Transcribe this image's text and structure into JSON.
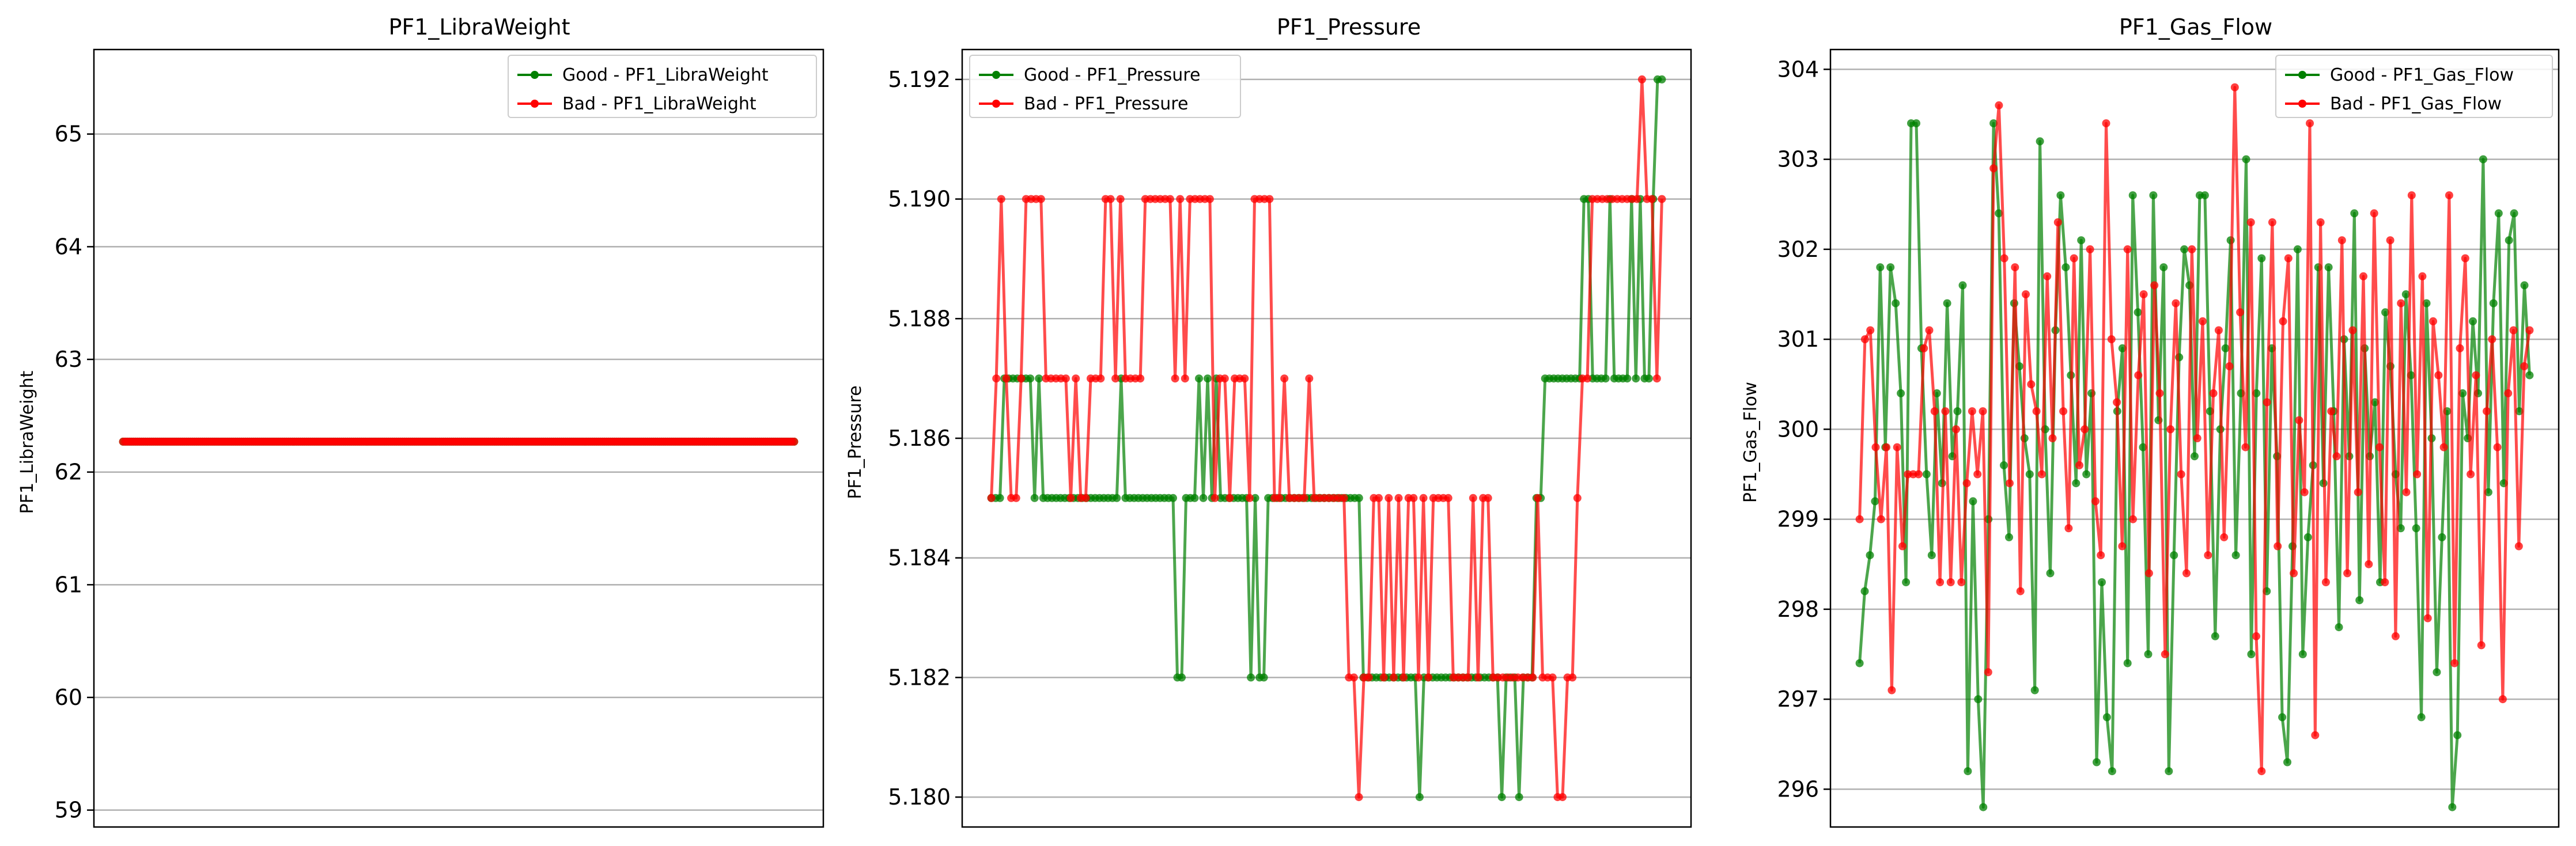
{
  "chart_data": [
    {
      "type": "line",
      "title": "PF1_LibraWeight",
      "xlabel": "",
      "ylabel": "PF1_LibraWeight",
      "ylim": [
        58.85,
        65.75
      ],
      "yticks": [
        59,
        60,
        61,
        62,
        63,
        64,
        65
      ],
      "ytick_labels": [
        "59",
        "60",
        "61",
        "62",
        "63",
        "64",
        "65"
      ],
      "grid": "horizontal",
      "legend": "top-right",
      "series": [
        {
          "name": "Good - PF1_LibraWeight",
          "color": "#008000",
          "marker": "dot",
          "values": [
            62.27
          ]
        },
        {
          "name": "Bad - PF1_LibraWeight",
          "color": "#ff0000",
          "marker": "dot",
          "values": [
            62.27
          ]
        }
      ]
    },
    {
      "type": "line",
      "title": "PF1_Pressure",
      "xlabel": "",
      "ylabel": "PF1_Pressure",
      "ylim": [
        5.1795,
        5.1925
      ],
      "yticks": [
        5.18,
        5.182,
        5.184,
        5.186,
        5.188,
        5.19,
        5.192
      ],
      "ytick_labels": [
        "5.180",
        "5.182",
        "5.184",
        "5.186",
        "5.188",
        "5.190",
        "5.192"
      ],
      "grid": "horizontal",
      "legend": "top-left",
      "series": [
        {
          "name": "Good - PF1_Pressure",
          "color": "#008000",
          "marker": "dot",
          "values": [
            5.185,
            5.185,
            5.185,
            5.187,
            5.187,
            5.187,
            5.187,
            5.187,
            5.187,
            5.187,
            5.185,
            5.187,
            5.185,
            5.185,
            5.185,
            5.185,
            5.185,
            5.185,
            5.185,
            5.185,
            5.185,
            5.185,
            5.185,
            5.185,
            5.185,
            5.185,
            5.185,
            5.185,
            5.185,
            5.185,
            5.187,
            5.185,
            5.185,
            5.185,
            5.185,
            5.185,
            5.185,
            5.185,
            5.185,
            5.185,
            5.185,
            5.185,
            5.185,
            5.182,
            5.182,
            5.185,
            5.185,
            5.185,
            5.187,
            5.185,
            5.187,
            5.185,
            5.187,
            5.185,
            5.185,
            5.185,
            5.185,
            5.185,
            5.185,
            5.185,
            5.182,
            5.185,
            5.182,
            5.182,
            5.185,
            5.185,
            5.185,
            5.185,
            5.185,
            5.185,
            5.185,
            5.185,
            5.185,
            5.185,
            5.185,
            5.185,
            5.185,
            5.185,
            5.185,
            5.185,
            5.185,
            5.185,
            5.185,
            5.185,
            5.185,
            5.185,
            5.182,
            5.182,
            5.182,
            5.182,
            5.182,
            5.182,
            5.182,
            5.182,
            5.182,
            5.182,
            5.182,
            5.182,
            5.182,
            5.18,
            5.182,
            5.182,
            5.182,
            5.182,
            5.182,
            5.182,
            5.182,
            5.182,
            5.182,
            5.182,
            5.182,
            5.182,
            5.182,
            5.182,
            5.182,
            5.182,
            5.182,
            5.182,
            5.18,
            5.182,
            5.182,
            5.182,
            5.18,
            5.182,
            5.182,
            5.182,
            5.185,
            5.185,
            5.187,
            5.187,
            5.187,
            5.187,
            5.187,
            5.187,
            5.187,
            5.187,
            5.187,
            5.19,
            5.19,
            5.187,
            5.187,
            5.187,
            5.187,
            5.19,
            5.187,
            5.187,
            5.187,
            5.187,
            5.19,
            5.187,
            5.19,
            5.187,
            5.187,
            5.19,
            5.192,
            5.192
          ]
        },
        {
          "name": "Bad - PF1_Pressure",
          "color": "#ff0000",
          "marker": "dot",
          "values": [
            5.185,
            5.187,
            5.19,
            5.187,
            5.185,
            5.185,
            5.187,
            5.19,
            5.19,
            5.19,
            5.19,
            5.187,
            5.187,
            5.187,
            5.187,
            5.187,
            5.185,
            5.187,
            5.185,
            5.185,
            5.187,
            5.187,
            5.187,
            5.19,
            5.19,
            5.187,
            5.19,
            5.187,
            5.187,
            5.187,
            5.187,
            5.19,
            5.19,
            5.19,
            5.19,
            5.19,
            5.19,
            5.187,
            5.19,
            5.187,
            5.19,
            5.19,
            5.19,
            5.19,
            5.19,
            5.185,
            5.187,
            5.187,
            5.185,
            5.187,
            5.187,
            5.187,
            5.185,
            5.19,
            5.19,
            5.19,
            5.19,
            5.185,
            5.185,
            5.187,
            5.185,
            5.185,
            5.185,
            5.185,
            5.187,
            5.185,
            5.185,
            5.185,
            5.185,
            5.185,
            5.185,
            5.185,
            5.182,
            5.182,
            5.18,
            5.182,
            5.182,
            5.185,
            5.185,
            5.182,
            5.185,
            5.182,
            5.185,
            5.182,
            5.185,
            5.185,
            5.182,
            5.185,
            5.182,
            5.185,
            5.185,
            5.185,
            5.185,
            5.182,
            5.182,
            5.182,
            5.182,
            5.185,
            5.182,
            5.185,
            5.185,
            5.182,
            5.182,
            5.182,
            5.182,
            5.182,
            5.182,
            5.182,
            5.182,
            5.182,
            5.185,
            5.182,
            5.182,
            5.182,
            5.18,
            5.18,
            5.182,
            5.182,
            5.185,
            5.187,
            5.187,
            5.19,
            5.19,
            5.19,
            5.19,
            5.19,
            5.19,
            5.19,
            5.19,
            5.19,
            5.19,
            5.192,
            5.19,
            5.19,
            5.187,
            5.19
          ]
        }
      ]
    },
    {
      "type": "line",
      "title": "PF1_Gas_Flow",
      "xlabel": "",
      "ylabel": "PF1_Gas_Flow",
      "ylim": [
        295.58,
        304.22
      ],
      "yticks": [
        296,
        297,
        298,
        299,
        300,
        301,
        302,
        303,
        304
      ],
      "ytick_labels": [
        "296",
        "297",
        "298",
        "299",
        "300",
        "301",
        "302",
        "303",
        "304"
      ],
      "grid": "horizontal",
      "legend": "top-right",
      "series": [
        {
          "name": "Good - PF1_Gas_Flow",
          "color": "#008000",
          "marker": "dot",
          "values": [
            297.4,
            298.2,
            298.6,
            299.2,
            301.8,
            299.8,
            301.8,
            301.4,
            300.4,
            298.3,
            303.4,
            303.4,
            300.9,
            299.5,
            298.6,
            300.4,
            299.4,
            301.4,
            299.7,
            300.2,
            301.6,
            296.2,
            299.2,
            297.0,
            295.8,
            299.0,
            303.4,
            302.4,
            299.6,
            298.8,
            301.4,
            300.7,
            299.9,
            299.5,
            297.1,
            303.2,
            300.0,
            298.4,
            301.1,
            302.6,
            301.8,
            300.6,
            299.4,
            302.1,
            299.5,
            300.4,
            296.3,
            298.3,
            296.8,
            296.2,
            300.2,
            300.9,
            297.4,
            302.6,
            301.3,
            299.8,
            297.5,
            302.6,
            300.1,
            301.8,
            296.2,
            298.6,
            300.8,
            302.0,
            301.6,
            299.7,
            302.6,
            302.6,
            300.2,
            297.7,
            300.0,
            300.9,
            302.1,
            298.6,
            300.4,
            303.0,
            297.5,
            300.4,
            301.9,
            298.2,
            300.9,
            299.7,
            296.8,
            296.3,
            298.7,
            302.0,
            297.5,
            298.8,
            299.6,
            301.8,
            299.4,
            301.8,
            300.2,
            297.8,
            301.0,
            299.7,
            302.4,
            298.1,
            300.9,
            299.7,
            300.3,
            298.3,
            301.3,
            300.7,
            299.5,
            298.9,
            301.5,
            300.6,
            298.9,
            296.8,
            301.4,
            299.9,
            297.3,
            298.8,
            300.2,
            295.8,
            296.6,
            300.4,
            299.9,
            301.2,
            300.4,
            303.0,
            299.3,
            301.4,
            302.4,
            299.4,
            302.1,
            302.4,
            300.2,
            301.6,
            300.6
          ]
        },
        {
          "name": "Bad - PF1_Gas_Flow",
          "color": "#ff0000",
          "marker": "dot",
          "values": [
            299.0,
            301.0,
            301.1,
            299.8,
            299.0,
            299.8,
            297.1,
            299.8,
            298.7,
            299.5,
            299.5,
            299.5,
            300.9,
            301.1,
            300.2,
            298.3,
            300.2,
            298.3,
            300.0,
            298.3,
            299.4,
            300.2,
            299.5,
            300.2,
            297.3,
            302.9,
            303.6,
            301.9,
            299.4,
            301.8,
            298.2,
            301.5,
            300.5,
            300.2,
            299.5,
            301.7,
            299.9,
            302.3,
            300.2,
            298.9,
            301.9,
            299.6,
            300.0,
            302.0,
            299.2,
            298.6,
            303.4,
            301.0,
            300.3,
            298.7,
            302.0,
            299.0,
            300.6,
            301.5,
            298.4,
            301.6,
            300.4,
            297.5,
            300.0,
            301.4,
            299.5,
            298.4,
            302.0,
            299.9,
            301.2,
            298.6,
            300.4,
            301.1,
            298.8,
            300.7,
            303.8,
            301.3,
            299.8,
            302.3,
            297.7,
            296.2,
            300.3,
            302.3,
            298.7,
            301.2,
            301.9,
            298.4,
            300.1,
            299.3,
            303.4,
            296.6,
            302.3,
            298.3,
            300.2,
            299.7,
            302.1,
            298.4,
            301.1,
            299.3,
            301.7,
            298.5,
            302.4,
            299.8,
            298.3,
            302.1,
            297.7,
            301.4,
            299.3,
            302.6,
            299.5,
            301.7,
            297.9,
            301.2,
            300.6,
            299.8,
            302.6,
            297.4,
            300.9,
            301.9,
            299.5,
            300.6,
            297.6,
            300.2,
            301.0,
            299.8,
            297.0,
            300.4,
            301.1,
            298.7,
            300.7,
            301.1
          ]
        }
      ]
    }
  ]
}
